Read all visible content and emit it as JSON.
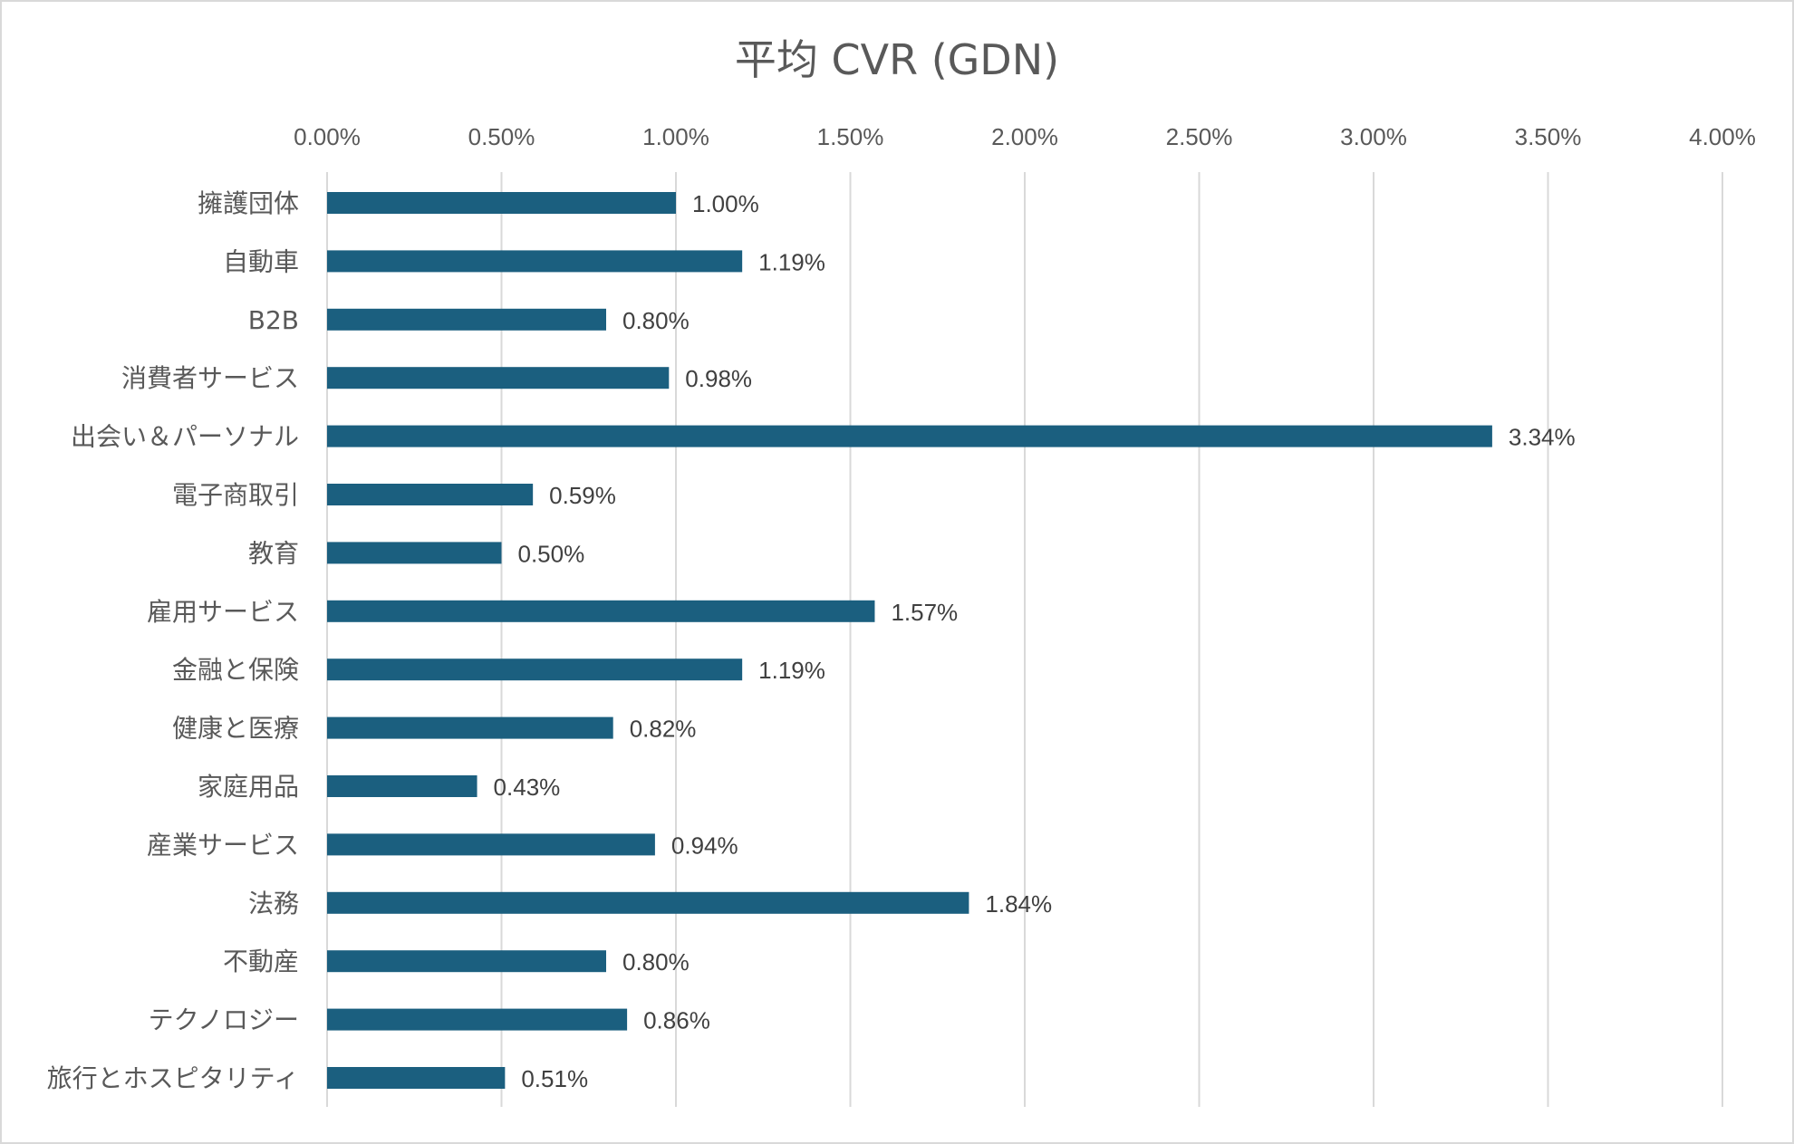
{
  "chart_data": {
    "type": "bar",
    "orientation": "horizontal",
    "title": "平均 CVR (GDN)",
    "xlabel": "",
    "ylabel": "",
    "axis_position": "top",
    "xlim": [
      0,
      0.04
    ],
    "ticks": [
      0,
      0.005,
      0.01,
      0.015,
      0.02,
      0.025,
      0.03,
      0.035,
      0.04
    ],
    "tick_labels": [
      "0.00%",
      "0.50%",
      "1.00%",
      "1.50%",
      "2.00%",
      "2.50%",
      "3.00%",
      "3.50%",
      "4.00%"
    ],
    "grid": true,
    "legend": "none",
    "bar_color": "#1b5f7f",
    "categories": [
      "擁護団体",
      "自動車",
      "B2B",
      "消費者サービス",
      "出会い＆パーソナル",
      "電子商取引",
      "教育",
      "雇用サービス",
      "金融と保険",
      "健康と医療",
      "家庭用品",
      "産業サービス",
      "法務",
      "不動産",
      "テクノロジー",
      "旅行とホスピタリティ"
    ],
    "values": [
      0.01,
      0.0119,
      0.008,
      0.0098,
      0.0334,
      0.0059,
      0.005,
      0.0157,
      0.0119,
      0.0082,
      0.0043,
      0.0094,
      0.0184,
      0.008,
      0.0086,
      0.0051
    ],
    "data_labels": [
      "1.00%",
      "1.19%",
      "0.80%",
      "0.98%",
      "3.34%",
      "0.59%",
      "0.50%",
      "1.57%",
      "1.19%",
      "0.82%",
      "0.43%",
      "0.94%",
      "1.84%",
      "0.80%",
      "0.86%",
      "0.51%"
    ]
  }
}
